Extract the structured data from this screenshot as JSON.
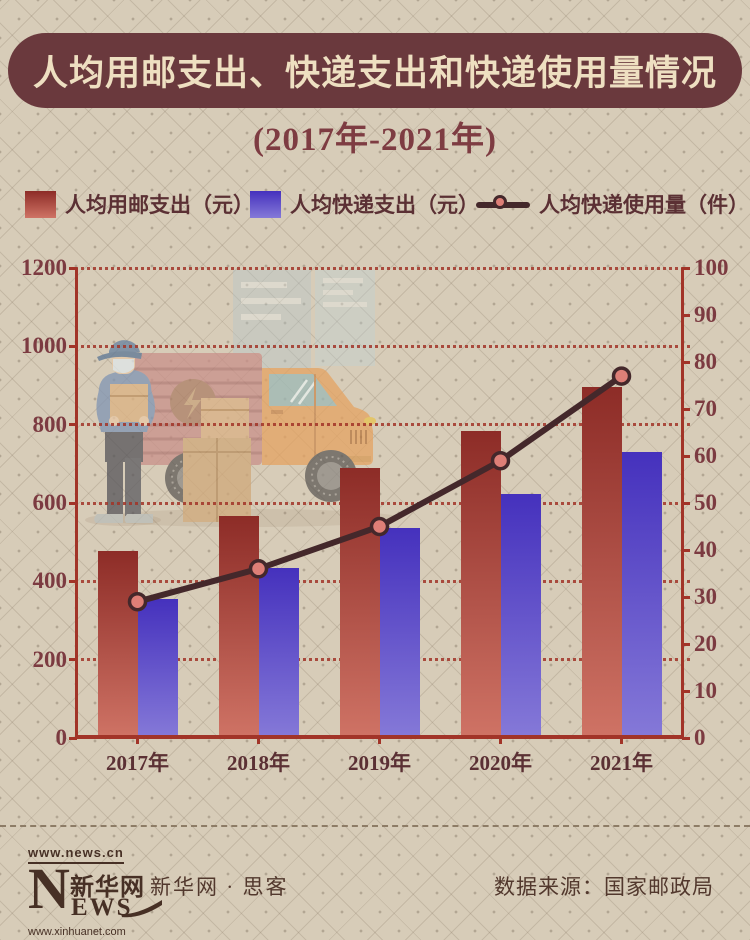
{
  "title": "人均用邮支出、快递支出和快递使用量情况",
  "subtitle": "(2017年-2021年)",
  "legend": [
    {
      "label": "人均用邮支出（元）",
      "swatch": "gradient-square",
      "color_top": "#8d2c27",
      "color_bottom": "#cf7365"
    },
    {
      "label": "人均快递支出（元）",
      "swatch": "gradient-square",
      "color_top": "#4531bd",
      "color_bottom": "#8579d8"
    },
    {
      "label": "人均快递使用量（件）",
      "swatch": "line-marker",
      "line_color": "#44282b",
      "marker_fill": "#de7f77"
    }
  ],
  "chart_data": {
    "type": "bar+line",
    "categories": [
      "2017年",
      "2018年",
      "2019年",
      "2020年",
      "2021年"
    ],
    "bar_series": [
      {
        "name": "人均用邮支出（元）",
        "axis": "left",
        "values": [
          477,
          566,
          690,
          783,
          895
        ]
      },
      {
        "name": "人均快递支出（元）",
        "axis": "left",
        "values": [
          356,
          433,
          536,
          624,
          730
        ]
      }
    ],
    "line_series": [
      {
        "name": "人均快递使用量（件）",
        "axis": "right",
        "values": [
          29,
          36,
          45,
          59,
          77
        ]
      }
    ],
    "left_axis": {
      "min": 0,
      "max": 1200,
      "step": 200
    },
    "right_axis": {
      "min": 0,
      "max": 100,
      "step": 10
    },
    "grid": "horizontal-dotted",
    "legend_position": "top"
  },
  "colors": {
    "background": "#d7ccb8",
    "axis": "#a23428",
    "grid": "#a23428",
    "title_bg": "#6a393d",
    "title_text": "#eedfc1",
    "subtitle_text": "#7e3c42",
    "text_dark": "#5b3034",
    "tick_text": "#7c3b41",
    "line": "#44282b",
    "marker": "#de7f77",
    "bar1_top": "#8d2c27",
    "bar1_bottom": "#cf7365",
    "bar2_top": "#4531bd",
    "bar2_bottom": "#8579d8",
    "footer_text": "#52382d",
    "logo": "#473025",
    "divider": "#8d7c66"
  },
  "footer": {
    "logo": {
      "url_top": "www.news.cn",
      "n": "N",
      "cn": "新华网",
      "ews": "EWS",
      "url_bottom": "www.xinhuanet.com"
    },
    "brand": "新华网 · 思客",
    "source": "数据来源：国家邮政局"
  }
}
